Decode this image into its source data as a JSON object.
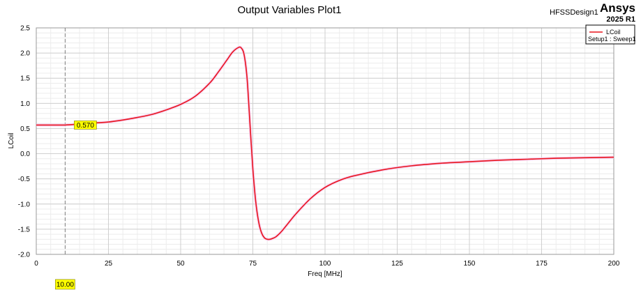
{
  "branding": {
    "design_name": "HFSSDesign1",
    "product": "Ansys",
    "release": "2025 R1"
  },
  "chart_data": {
    "type": "line",
    "title": "Output Variables Plot1",
    "xlabel": "Freq [MHz]",
    "ylabel": "LCoil",
    "xlim": [
      0,
      200
    ],
    "ylim": [
      -2.0,
      2.5
    ],
    "x_ticks": [
      0,
      25,
      50,
      75,
      100,
      125,
      150,
      175,
      200
    ],
    "y_ticks": [
      2.5,
      2.0,
      1.5,
      1.0,
      0.5,
      0.0,
      -0.5,
      -1.0,
      -1.5,
      -2.0
    ],
    "x_tick_labels": [
      "0",
      "25",
      "50",
      "75",
      "100",
      "125",
      "150",
      "175",
      "200"
    ],
    "y_tick_labels": [
      "2.5",
      "2.0",
      "1.5",
      "1.0",
      "0.5",
      "0.0",
      "-0.5",
      "-1.0",
      "-1.5",
      "-2.0"
    ],
    "grid": true,
    "legend_position": "top-right",
    "legend": {
      "entry": "LCoil",
      "subtitle": "Setup1 : Sweep1"
    },
    "series": [
      {
        "name": "LCoil",
        "color": "#e8141c",
        "x": [
          0,
          5,
          10,
          15,
          20,
          25,
          30,
          35,
          40,
          45,
          50,
          55,
          60,
          63,
          66,
          68,
          70,
          71,
          72,
          73,
          74,
          75,
          76,
          77,
          78,
          79,
          80,
          81,
          82,
          83,
          84,
          85,
          87,
          90,
          95,
          100,
          105,
          110,
          120,
          130,
          140,
          150,
          160,
          170,
          180,
          190,
          200
        ],
        "y": [
          0.57,
          0.57,
          0.57,
          0.59,
          0.61,
          0.63,
          0.67,
          0.72,
          0.78,
          0.87,
          0.98,
          1.14,
          1.4,
          1.62,
          1.86,
          2.02,
          2.11,
          2.1,
          1.96,
          1.5,
          0.6,
          -0.3,
          -0.95,
          -1.35,
          -1.57,
          -1.67,
          -1.7,
          -1.7,
          -1.68,
          -1.65,
          -1.6,
          -1.54,
          -1.4,
          -1.19,
          -0.89,
          -0.67,
          -0.53,
          -0.44,
          -0.32,
          -0.24,
          -0.19,
          -0.16,
          -0.13,
          -0.11,
          -0.09,
          -0.08,
          -0.07
        ]
      }
    ],
    "marker": {
      "x": 10.0,
      "x_label": "10.00",
      "y_value_label": "0.570",
      "color": "#ffff00"
    }
  }
}
